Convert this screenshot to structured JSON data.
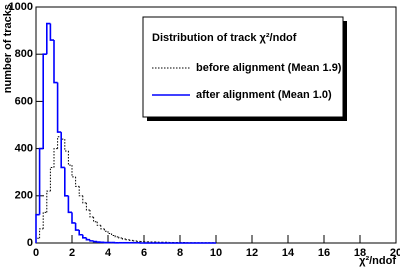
{
  "chart_data": {
    "type": "histogram",
    "ylabel": "number of tracks",
    "xlabel": "χ²/ndof",
    "legend_title": "Distribution of track χ²/ndof",
    "bins": [
      0,
      0.2,
      0.4,
      0.6,
      0.8,
      1,
      1.2,
      1.4,
      1.6,
      1.8,
      2,
      2.2,
      2.4,
      2.6,
      2.8,
      3,
      3.2,
      3.4,
      3.6,
      3.8,
      4,
      4.2,
      4.4,
      4.6,
      4.8,
      5,
      5.2,
      5.4,
      5.6,
      5.8,
      6,
      6.2,
      6.4,
      6.6,
      6.8,
      7,
      7.2,
      7.4,
      7.6,
      7.8,
      8,
      8.2,
      8.4,
      8.6,
      8.8,
      9,
      9.2,
      9.4,
      9.6,
      9.8,
      10
    ],
    "series": [
      {
        "name": "before alignment (Mean  1.9)",
        "color": "#000000",
        "style": "dotted",
        "values": [
          20,
          60,
          130,
          220,
          320,
          400,
          450,
          440,
          390,
          330,
          280,
          240,
          200,
          170,
          140,
          110,
          90,
          75,
          60,
          50,
          40,
          32,
          26,
          21,
          17,
          14,
          11,
          9,
          7,
          6,
          5,
          5,
          4,
          4,
          3,
          3,
          3,
          2,
          2,
          2,
          2,
          2,
          1,
          1,
          1,
          1,
          1,
          1,
          1,
          1
        ]
      },
      {
        "name": "after alignment (Mean  1.0)",
        "color": "#0000ff",
        "style": "solid",
        "values": [
          120,
          400,
          800,
          930,
          860,
          680,
          470,
          320,
          200,
          130,
          85,
          55,
          35,
          22,
          14,
          9,
          6,
          4,
          3,
          2,
          2,
          2,
          1,
          1,
          1,
          1,
          1,
          1,
          1,
          0,
          0,
          0,
          0,
          0,
          0,
          0,
          0,
          0,
          0,
          0,
          0,
          0,
          0,
          0,
          0,
          0,
          0,
          0,
          0,
          0
        ]
      }
    ],
    "xlim": [
      0,
      20
    ],
    "xticks": [
      0,
      2,
      4,
      6,
      8,
      10,
      12,
      14,
      16,
      18,
      20
    ],
    "ylim": [
      0,
      1000
    ],
    "yticks": [
      0,
      200,
      400,
      600,
      800,
      1000
    ]
  }
}
